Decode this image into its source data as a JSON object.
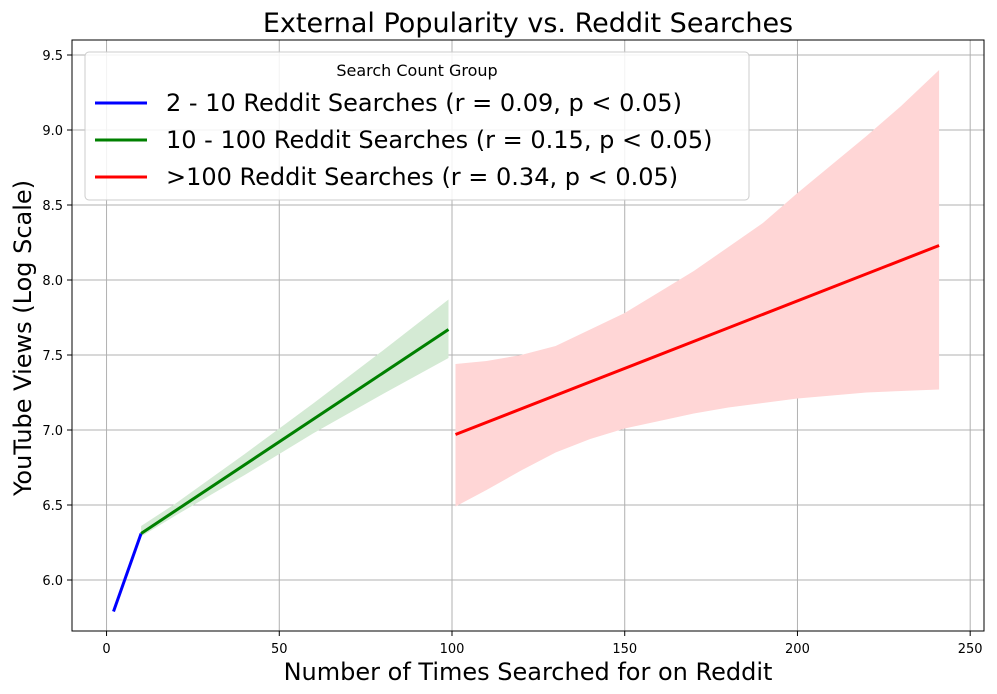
{
  "chart_data": {
    "type": "line",
    "title": "External Popularity vs. Reddit Searches",
    "xlabel": "Number of Times Searched for on Reddit",
    "ylabel": "YouTube Views (Log Scale)",
    "xlim": [
      -10,
      254
    ],
    "ylim": [
      5.66,
      9.6
    ],
    "x_ticks": [
      0,
      50,
      100,
      150,
      200,
      250
    ],
    "y_ticks": [
      6.0,
      6.5,
      7.0,
      7.5,
      8.0,
      8.5,
      9.0,
      9.5
    ],
    "x_tick_labels": [
      "0",
      "50",
      "100",
      "150",
      "200",
      "250"
    ],
    "y_tick_labels": [
      "6.0",
      "6.5",
      "7.0",
      "7.5",
      "8.0",
      "8.5",
      "9.0",
      "9.5"
    ],
    "grid": true,
    "legend": {
      "title": "Search Count Group",
      "placement": "upper-left"
    },
    "series": [
      {
        "name": "2 - 10 Reddit Searches (r = 0.09, p < 0.05)",
        "color": "#0000ff",
        "x": [
          2,
          10
        ],
        "y": [
          5.79,
          6.31
        ],
        "band": null
      },
      {
        "name": "10 - 100 Reddit Searches (r = 0.15, p < 0.05)",
        "color": "#008000",
        "band_color": "#d4ead4",
        "x": [
          10,
          99
        ],
        "y": [
          6.31,
          7.67
        ],
        "band": {
          "x": [
            10,
            20,
            40,
            60,
            80,
            99
          ],
          "lower": [
            6.29,
            6.43,
            6.7,
            6.98,
            7.24,
            7.48
          ],
          "upper": [
            6.36,
            6.51,
            6.84,
            7.18,
            7.53,
            7.87
          ]
        }
      },
      {
        "name": ">100 Reddit Searches (r = 0.34, p < 0.05)",
        "color": "#ff0000",
        "band_color": "#ffd6d6",
        "x": [
          101,
          241
        ],
        "y": [
          6.97,
          8.23
        ],
        "band": {
          "x": [
            101,
            110,
            120,
            130,
            140,
            150,
            160,
            170,
            180,
            190,
            200,
            210,
            220,
            230,
            241
          ],
          "lower": [
            6.49,
            6.6,
            6.73,
            6.85,
            6.94,
            7.01,
            7.06,
            7.11,
            7.15,
            7.18,
            7.21,
            7.23,
            7.25,
            7.26,
            7.27
          ],
          "upper": [
            7.44,
            7.46,
            7.5,
            7.56,
            7.67,
            7.78,
            7.92,
            8.06,
            8.22,
            8.38,
            8.58,
            8.77,
            8.96,
            9.16,
            9.4
          ]
        }
      }
    ]
  }
}
